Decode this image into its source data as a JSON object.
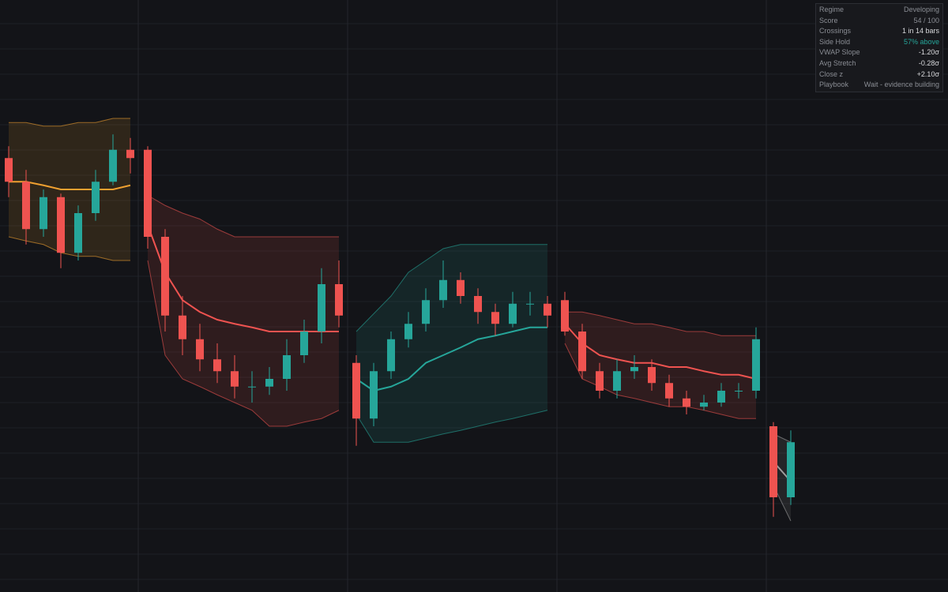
{
  "chart_data": {
    "type": "candlestick",
    "ylim": [
      0,
      100
    ],
    "up_color": "#26a69a",
    "down_color": "#ef5350",
    "sessions": [
      {
        "color": "#f0a030",
        "open": [
          73.3,
          69.3,
          61.3,
          66.7,
          57.3,
          64,
          69.3,
          74.7
        ],
        "high": [
          75.3,
          71.3,
          68,
          67.3,
          65.3,
          71.3,
          77.3,
          76.7
        ],
        "low": [
          66.7,
          58.7,
          60,
          54.7,
          56,
          62.7,
          68.7,
          70.7
        ],
        "close": [
          69.3,
          61.3,
          66.7,
          57.3,
          64,
          69.3,
          74.7,
          73.3
        ],
        "vwap": [
          69.3,
          69.3,
          68.7,
          68,
          68,
          68,
          68,
          68.7
        ],
        "upper": [
          79.3,
          79.3,
          78.7,
          78.7,
          79.3,
          79.3,
          80,
          80
        ],
        "lower": [
          60,
          59.3,
          58.7,
          57.3,
          56.7,
          56.7,
          56,
          56
        ]
      },
      {
        "color": "#ef5350",
        "open": [
          74.7,
          60,
          46.7,
          42.7,
          39.3,
          37.3,
          34.7,
          34.7,
          36,
          40,
          44,
          52
        ],
        "high": [
          75.3,
          61.3,
          50,
          45.3,
          42,
          40,
          37.3,
          38,
          42.7,
          46,
          54.7,
          56
        ],
        "low": [
          58,
          44,
          40,
          37.3,
          35.3,
          32.7,
          32,
          33.3,
          34,
          38.7,
          42,
          44.7
        ],
        "close": [
          60,
          46.7,
          42.7,
          39.3,
          37.3,
          34.7,
          34.7,
          36,
          40,
          44,
          52,
          46.7
        ],
        "vwap": [
          62,
          54,
          49.3,
          47.3,
          46,
          45.3,
          44.7,
          44,
          44,
          44,
          44,
          44
        ],
        "upper": [
          67,
          65.3,
          64,
          63,
          61.3,
          60,
          60,
          60,
          60,
          60,
          60,
          60
        ],
        "lower": [
          56,
          40,
          36,
          34.7,
          33.3,
          32,
          30.7,
          28,
          28,
          28.7,
          29.3,
          30.7
        ]
      },
      {
        "color": "#26a69a",
        "open": [
          38.7,
          29.3,
          37.3,
          42.7,
          45.3,
          49.3,
          52.7,
          50,
          47.3,
          45.3,
          48.7,
          48.7
        ],
        "high": [
          40,
          38.7,
          44,
          47.3,
          51.3,
          56,
          54,
          51.3,
          48.7,
          50.7,
          50.7,
          50
        ],
        "low": [
          24.7,
          28,
          36,
          41.3,
          44,
          48,
          48.7,
          45.3,
          43.3,
          44.7,
          46.7,
          44.7
        ],
        "close": [
          29.3,
          37.3,
          42.7,
          45.3,
          49.3,
          52.7,
          50,
          47.3,
          45.3,
          48.7,
          48.7,
          46.7
        ],
        "vwap": [
          36,
          34,
          34.7,
          36,
          38.7,
          40,
          41.3,
          42.7,
          43.3,
          44,
          44.7,
          44.7
        ],
        "upper": [
          44,
          47,
          50,
          54,
          56,
          58,
          58.7,
          58.7,
          58.7,
          58.7,
          58.7,
          58.7
        ],
        "lower": [
          30,
          25.3,
          25.3,
          25.3,
          26,
          26.7,
          27.3,
          28,
          28.7,
          29.3,
          30,
          30.7
        ]
      },
      {
        "color": "#ef5350",
        "open": [
          49.3,
          44,
          37.3,
          34,
          37.3,
          38,
          35.3,
          32.7,
          31.3,
          32,
          34,
          34
        ],
        "high": [
          50.7,
          45.3,
          38.7,
          39.3,
          40,
          39.3,
          36.7,
          34,
          33.3,
          35.3,
          35.3,
          44.7
        ],
        "low": [
          43.3,
          36,
          32.7,
          32.7,
          36,
          34,
          31.3,
          30,
          30.7,
          31.3,
          32.7,
          32.7
        ],
        "close": [
          44,
          37.3,
          34,
          37.3,
          38,
          35.3,
          32.7,
          31.3,
          32,
          34,
          34,
          42.7
        ],
        "vwap": [
          45.3,
          42,
          40,
          39.3,
          38.7,
          38.7,
          38,
          38,
          37.3,
          36.7,
          36.7,
          36
        ],
        "upper": [
          47.3,
          47.3,
          46.7,
          46,
          45.3,
          45.3,
          44.7,
          44,
          44,
          43.3,
          43.3,
          43.3
        ],
        "lower": [
          42,
          36,
          34.7,
          33.3,
          32.7,
          32,
          31.3,
          31.3,
          30.7,
          30,
          29.3,
          29.3
        ]
      },
      {
        "color": "#9e9e9e",
        "open": [
          28,
          16
        ],
        "high": [
          28.7,
          27.3
        ],
        "low": [
          12.7,
          14.7
        ],
        "close": [
          16,
          25.3
        ],
        "vwap": [
          22,
          18.7
        ],
        "upper": [
          26.7,
          25.3
        ],
        "lower": [
          18,
          12
        ]
      }
    ]
  },
  "panel": {
    "rows": [
      {
        "label": "Regime",
        "value": "Developing",
        "color": "#8a8d94"
      },
      {
        "label": "Score",
        "value": "54 / 100",
        "color": "#8a8d94"
      },
      {
        "label": "Crossings",
        "value": "1 in 14 bars",
        "color": "#d8d9dc"
      },
      {
        "label": "Side Hold",
        "value": "57% above",
        "color": "#26a69a"
      },
      {
        "label": "VWAP Slope",
        "value": "-1.20σ",
        "color": "#d8d9dc"
      },
      {
        "label": "Avg Stretch",
        "value": "-0.28σ",
        "color": "#d8d9dc"
      },
      {
        "label": "Close z",
        "value": "+2.10σ",
        "color": "#d8d9dc"
      },
      {
        "label": "Playbook",
        "value": "Wait - evidence building",
        "color": "#8a8d94"
      }
    ]
  }
}
